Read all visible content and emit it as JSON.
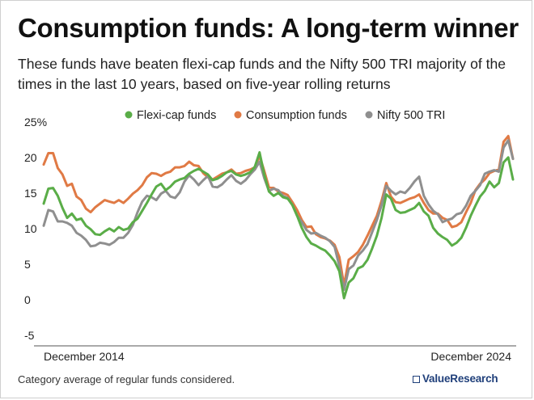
{
  "title": "Consumption funds: A long-term winner",
  "subtitle": "These funds have beaten flexi-cap funds and the Nifty 500 TRI majority of the times in the last 10 years, based on five-year rolling returns",
  "footer": "Category average of regular funds considered.",
  "brand": "ValueResearch",
  "chart_data": {
    "type": "line",
    "legend_position": "top",
    "grid": false,
    "y_ticks": [
      "25%",
      "20",
      "15",
      "10",
      "5",
      "0",
      "-5"
    ],
    "y_tick_values": [
      25,
      20,
      15,
      10,
      5,
      0,
      -5
    ],
    "ylim": [
      -6.5,
      26
    ],
    "x_tick_labels": [
      "December 2014",
      "December 2024"
    ],
    "x_count": 101,
    "series": [
      {
        "name": "Flexi-cap funds",
        "color": "#5aad48",
        "values": [
          13.5,
          15.6,
          15.7,
          14.6,
          12.9,
          11.5,
          12.1,
          11.2,
          11.4,
          10.4,
          9.9,
          9.2,
          9.1,
          9.6,
          10.0,
          9.6,
          10.2,
          9.8,
          10.0,
          10.9,
          11.4,
          12.5,
          13.6,
          14.8,
          15.9,
          16.3,
          15.4,
          15.9,
          16.6,
          16.9,
          17.1,
          17.7,
          18.1,
          18.4,
          18.0,
          17.6,
          16.8,
          17.0,
          17.4,
          17.9,
          18.1,
          17.6,
          17.4,
          17.6,
          17.9,
          18.7,
          20.7,
          17.6,
          15.2,
          14.6,
          15.0,
          14.4,
          14.2,
          13.3,
          11.8,
          10.1,
          8.8,
          7.9,
          7.6,
          7.2,
          6.9,
          6.2,
          5.4,
          4.0,
          0.2,
          2.4,
          3.0,
          4.4,
          4.7,
          5.6,
          7.2,
          9.0,
          11.5,
          14.8,
          14.2,
          12.6,
          12.2,
          12.3,
          12.6,
          12.9,
          13.6,
          12.4,
          11.8,
          10.1,
          9.3,
          8.8,
          8.4,
          7.6,
          8.0,
          8.7,
          10.1,
          11.8,
          13.2,
          14.5,
          15.3,
          16.6,
          15.8,
          16.4,
          19.3,
          20.0,
          16.9
        ]
      },
      {
        "name": "Consumption funds",
        "color": "#e07a45",
        "values": [
          19.0,
          20.6,
          20.6,
          18.5,
          17.6,
          16.0,
          16.3,
          14.5,
          14.0,
          12.8,
          12.3,
          13.0,
          13.5,
          14.0,
          13.8,
          13.6,
          14.0,
          13.6,
          14.2,
          14.9,
          15.4,
          16.1,
          17.2,
          17.8,
          17.7,
          17.4,
          17.8,
          18.0,
          18.6,
          18.6,
          18.8,
          19.4,
          18.9,
          18.8,
          17.8,
          17.2,
          16.9,
          17.3,
          17.7,
          17.9,
          18.3,
          17.7,
          17.8,
          18.1,
          18.3,
          18.6,
          20.2,
          18.1,
          15.8,
          15.7,
          15.2,
          15.0,
          14.7,
          13.7,
          12.6,
          11.2,
          10.2,
          10.3,
          9.2,
          8.8,
          8.6,
          8.3,
          7.7,
          6.0,
          2.0,
          5.6,
          6.1,
          6.7,
          7.7,
          9.0,
          10.4,
          11.8,
          13.9,
          16.4,
          14.5,
          13.7,
          13.6,
          13.9,
          14.2,
          14.4,
          14.8,
          13.6,
          12.6,
          12.1,
          12.1,
          11.5,
          11.2,
          10.2,
          10.4,
          10.9,
          12.3,
          13.6,
          15.4,
          16.3,
          16.9,
          17.8,
          18.1,
          18.3,
          22.2,
          23.0,
          19.8
        ]
      },
      {
        "name": "Nifty 500 TRI",
        "color": "#8f8f8f",
        "values": [
          10.4,
          12.6,
          12.4,
          11.0,
          11.0,
          10.8,
          10.4,
          9.4,
          9.0,
          8.4,
          7.5,
          7.6,
          8.0,
          7.9,
          7.7,
          8.1,
          8.7,
          8.7,
          9.4,
          10.5,
          12.3,
          13.8,
          14.6,
          14.4,
          14.0,
          14.9,
          15.3,
          14.5,
          14.3,
          15.1,
          16.6,
          17.5,
          16.9,
          16.1,
          16.8,
          17.4,
          15.9,
          15.8,
          16.2,
          16.9,
          17.5,
          16.7,
          16.3,
          16.8,
          17.6,
          18.3,
          19.4,
          17.1,
          15.3,
          15.6,
          15.4,
          14.6,
          14.3,
          13.3,
          11.8,
          10.9,
          9.8,
          9.3,
          9.4,
          9.0,
          8.7,
          8.2,
          7.4,
          4.7,
          1.4,
          4.3,
          4.8,
          6.2,
          6.9,
          7.8,
          9.5,
          11.2,
          13.3,
          16.0,
          15.3,
          14.8,
          15.2,
          15.0,
          15.7,
          16.6,
          17.3,
          14.6,
          13.4,
          12.5,
          12.0,
          10.9,
          11.2,
          11.4,
          12.0,
          12.2,
          13.2,
          14.6,
          15.3,
          16.1,
          17.7,
          18.0,
          18.2,
          18.0,
          21.4,
          22.4,
          19.8
        ]
      }
    ]
  }
}
